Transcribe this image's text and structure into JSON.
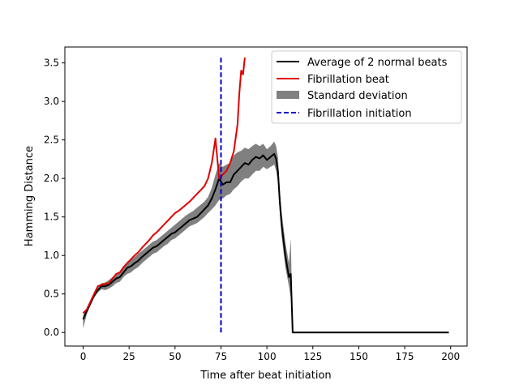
{
  "chart_data": {
    "type": "line",
    "xlabel": "Time after beat initiation",
    "ylabel": "Hamming Distance",
    "xlim": [
      -9.95,
      208.95
    ],
    "ylim": [
      -0.1765,
      3.7065
    ],
    "xticks": [
      0,
      25,
      50,
      75,
      100,
      125,
      150,
      175,
      200
    ],
    "yticks": [
      0.0,
      0.5,
      1.0,
      1.5,
      2.0,
      2.5,
      3.0,
      3.5
    ],
    "ytick_labels": [
      "0.0",
      "0.5",
      "1.0",
      "1.5",
      "2.0",
      "2.5",
      "3.0",
      "3.5"
    ],
    "legend_position": "upper right",
    "grid": false,
    "series": [
      {
        "name": "Average of 2 normal beats",
        "color": "#000000",
        "style": "solid",
        "x": [
          0,
          2,
          4,
          6,
          8,
          10,
          12,
          14,
          16,
          18,
          20,
          22,
          24,
          26,
          28,
          30,
          32,
          34,
          36,
          38,
          40,
          42,
          44,
          46,
          48,
          50,
          52,
          54,
          56,
          58,
          60,
          62,
          64,
          66,
          68,
          70,
          72,
          74,
          76,
          78,
          80,
          82,
          84,
          86,
          88,
          90,
          92,
          94,
          96,
          98,
          100,
          102,
          104,
          105,
          106,
          107,
          108,
          110,
          112,
          113,
          114,
          115,
          120,
          140,
          160,
          180,
          199
        ],
        "y": [
          0.17,
          0.28,
          0.38,
          0.48,
          0.55,
          0.6,
          0.6,
          0.62,
          0.66,
          0.7,
          0.72,
          0.78,
          0.84,
          0.86,
          0.9,
          0.93,
          0.98,
          1.02,
          1.06,
          1.1,
          1.12,
          1.16,
          1.2,
          1.24,
          1.28,
          1.3,
          1.34,
          1.38,
          1.42,
          1.46,
          1.48,
          1.5,
          1.55,
          1.6,
          1.65,
          1.74,
          1.86,
          2.0,
          1.92,
          1.95,
          1.95,
          2.05,
          2.1,
          2.15,
          2.2,
          2.18,
          2.24,
          2.28,
          2.26,
          2.3,
          2.24,
          2.28,
          2.32,
          2.25,
          2.1,
          1.7,
          1.4,
          1.0,
          0.72,
          0.76,
          0.0,
          0.0,
          0.0,
          0.0,
          0.0,
          0.0,
          0.0
        ],
        "lower": [
          0.05,
          0.24,
          0.35,
          0.45,
          0.52,
          0.56,
          0.55,
          0.57,
          0.6,
          0.64,
          0.66,
          0.72,
          0.76,
          0.78,
          0.82,
          0.85,
          0.9,
          0.94,
          0.98,
          1.02,
          1.04,
          1.08,
          1.12,
          1.15,
          1.2,
          1.22,
          1.26,
          1.3,
          1.34,
          1.38,
          1.4,
          1.42,
          1.46,
          1.5,
          1.55,
          1.6,
          1.65,
          1.72,
          1.74,
          1.78,
          1.8,
          1.86,
          1.9,
          1.96,
          2.0,
          2.0,
          2.05,
          2.1,
          2.1,
          2.15,
          2.12,
          2.15,
          2.18,
          2.1,
          1.95,
          1.55,
          1.25,
          0.85,
          0.6,
          0.45,
          0.0,
          0.0,
          0.0,
          0.0,
          0.0,
          0.0,
          0.0
        ],
        "upper": [
          0.22,
          0.32,
          0.42,
          0.52,
          0.58,
          0.64,
          0.65,
          0.68,
          0.72,
          0.76,
          0.78,
          0.84,
          0.92,
          0.94,
          0.98,
          1.02,
          1.06,
          1.1,
          1.14,
          1.18,
          1.2,
          1.24,
          1.28,
          1.32,
          1.36,
          1.4,
          1.44,
          1.48,
          1.52,
          1.55,
          1.58,
          1.62,
          1.66,
          1.7,
          1.76,
          1.88,
          2.05,
          2.2,
          2.15,
          2.18,
          2.2,
          2.3,
          2.34,
          2.36,
          2.4,
          2.38,
          2.42,
          2.45,
          2.42,
          2.45,
          2.38,
          2.42,
          2.48,
          2.42,
          2.28,
          1.86,
          1.56,
          1.18,
          0.9,
          1.22,
          0.0,
          0.0,
          0.0,
          0.0,
          0.0,
          0.0,
          0.0
        ]
      },
      {
        "name": "Fibrillation beat",
        "color": "#e00000",
        "style": "solid",
        "x": [
          0,
          2,
          4,
          6,
          8,
          10,
          12,
          14,
          16,
          18,
          20,
          22,
          24,
          26,
          28,
          30,
          32,
          34,
          36,
          38,
          40,
          42,
          44,
          46,
          48,
          50,
          52,
          54,
          56,
          58,
          60,
          62,
          64,
          66,
          68,
          70,
          72,
          74,
          76,
          78,
          80,
          82,
          84,
          85,
          86,
          87,
          88
        ],
        "y": [
          0.25,
          0.3,
          0.4,
          0.5,
          0.6,
          0.62,
          0.63,
          0.64,
          0.7,
          0.76,
          0.78,
          0.85,
          0.9,
          0.95,
          1.0,
          1.04,
          1.1,
          1.15,
          1.2,
          1.26,
          1.3,
          1.35,
          1.4,
          1.45,
          1.5,
          1.55,
          1.58,
          1.62,
          1.66,
          1.7,
          1.75,
          1.8,
          1.85,
          1.9,
          2.0,
          2.2,
          2.52,
          2.0,
          2.05,
          2.1,
          2.2,
          2.35,
          2.7,
          3.1,
          3.4,
          3.35,
          3.57
        ]
      },
      {
        "name": "Fibrillation initiation",
        "color": "#0000cc",
        "style": "dashed",
        "x": [
          75,
          75
        ],
        "y": [
          0.0,
          3.57
        ]
      }
    ],
    "band_name": "Standard deviation",
    "band_color": "#808080"
  }
}
